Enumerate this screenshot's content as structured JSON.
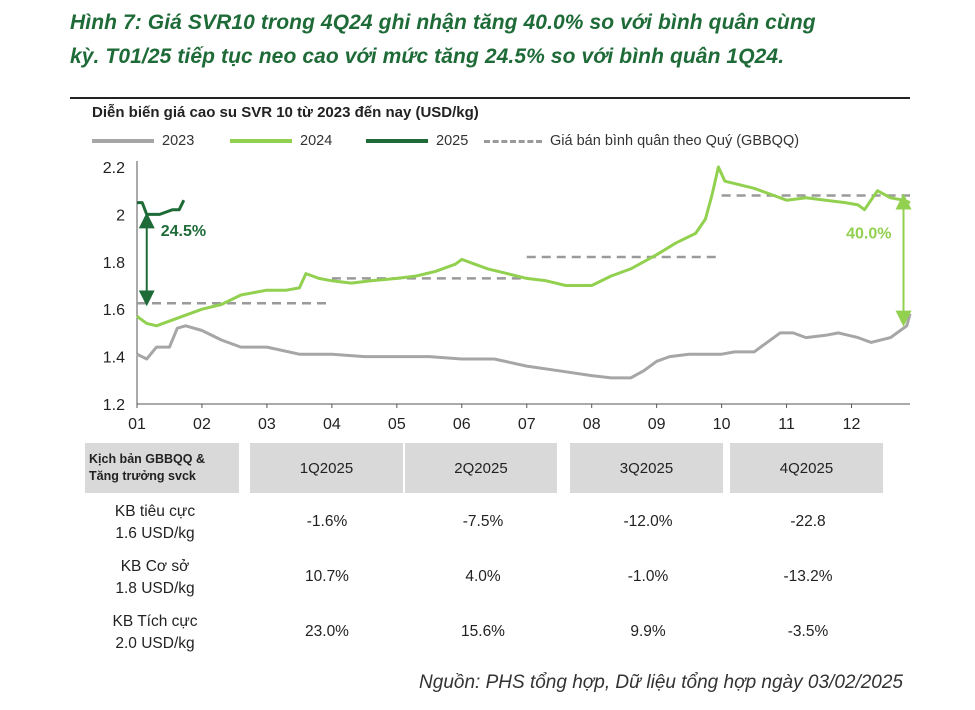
{
  "figure_title_line1": "Hình 7:  Giá SVR10 trong 4Q24 ghi nhận tăng 40.0% so với bình quân cùng",
  "figure_title_line2": "kỳ. T01/25 tiếp tục neo cao với mức tăng 24.5% so với bình quân 1Q24.",
  "source": "Nguồn: PHS tổng hợp, Dữ liệu tổng hợp ngày 03/02/2025",
  "colors": {
    "c2023": "#a6a6a6",
    "c2024": "#92d050",
    "c2025": "#1e6b38",
    "avg": "#9a9a9a",
    "title": "#1e6b38"
  },
  "chart_data": {
    "type": "line",
    "title": "Diễn biến giá cao su SVR 10 từ 2023 đến nay (USD/kg)",
    "xlabel": "",
    "ylabel": "",
    "x_ticks": [
      "01",
      "02",
      "03",
      "04",
      "05",
      "06",
      "07",
      "08",
      "09",
      "10",
      "11",
      "12"
    ],
    "ylim": [
      1.2,
      2.2
    ],
    "y_ticks": [
      "1.2",
      "1.4",
      "1.6",
      "1.8",
      "2",
      "2.2"
    ],
    "x_unit": "month",
    "xlim": [
      1,
      12.9
    ],
    "series": [
      {
        "name": "2023",
        "color": "#a6a6a6",
        "style": "solid",
        "x": [
          1.0,
          1.15,
          1.3,
          1.5,
          1.62,
          1.75,
          2.0,
          2.3,
          2.6,
          3.0,
          3.5,
          4.0,
          4.5,
          5.0,
          5.5,
          6.0,
          6.5,
          7.0,
          7.5,
          8.0,
          8.3,
          8.6,
          8.8,
          9.0,
          9.2,
          9.5,
          9.8,
          10.0,
          10.2,
          10.5,
          10.7,
          10.9,
          11.1,
          11.3,
          11.6,
          11.8,
          12.1,
          12.3,
          12.6,
          12.85,
          12.9
        ],
        "y": [
          1.41,
          1.39,
          1.44,
          1.44,
          1.52,
          1.53,
          1.51,
          1.47,
          1.44,
          1.44,
          1.41,
          1.41,
          1.4,
          1.4,
          1.4,
          1.39,
          1.39,
          1.36,
          1.34,
          1.32,
          1.31,
          1.31,
          1.34,
          1.38,
          1.4,
          1.41,
          1.41,
          1.41,
          1.42,
          1.42,
          1.46,
          1.5,
          1.5,
          1.48,
          1.49,
          1.5,
          1.48,
          1.46,
          1.48,
          1.53,
          1.58
        ]
      },
      {
        "name": "2024",
        "color": "#92d050",
        "style": "solid",
        "x": [
          1.0,
          1.15,
          1.3,
          1.6,
          2.0,
          2.3,
          2.6,
          3.0,
          3.3,
          3.5,
          3.6,
          3.8,
          4.0,
          4.3,
          4.6,
          5.0,
          5.3,
          5.6,
          5.9,
          6.0,
          6.2,
          6.4,
          6.7,
          7.0,
          7.3,
          7.6,
          8.0,
          8.3,
          8.6,
          9.0,
          9.3,
          9.6,
          9.75,
          9.85,
          9.95,
          10.05,
          10.2,
          10.5,
          10.8,
          11.0,
          11.3,
          11.6,
          11.9,
          12.1,
          12.2,
          12.4,
          12.6,
          12.8,
          12.9
        ],
        "y": [
          1.57,
          1.54,
          1.53,
          1.56,
          1.6,
          1.62,
          1.66,
          1.68,
          1.68,
          1.69,
          1.75,
          1.73,
          1.72,
          1.71,
          1.72,
          1.73,
          1.74,
          1.76,
          1.79,
          1.81,
          1.79,
          1.77,
          1.75,
          1.73,
          1.72,
          1.7,
          1.7,
          1.74,
          1.77,
          1.83,
          1.88,
          1.92,
          1.98,
          2.08,
          2.2,
          2.14,
          2.13,
          2.11,
          2.08,
          2.06,
          2.07,
          2.06,
          2.05,
          2.04,
          2.02,
          2.1,
          2.07,
          2.06,
          2.05
        ]
      },
      {
        "name": "2025",
        "color": "#1e6b38",
        "style": "solid",
        "x": [
          1.0,
          1.08,
          1.15,
          1.25,
          1.35,
          1.45,
          1.55,
          1.65,
          1.72
        ],
        "y": [
          2.05,
          2.05,
          2.0,
          2.0,
          2.0,
          2.01,
          2.02,
          2.02,
          2.06
        ]
      },
      {
        "name": "Giá bán bình quân theo Quý (GBBQQ)",
        "color": "#9a9a9a",
        "style": "dashed",
        "segments": [
          {
            "x": [
              1.0,
              4.0
            ],
            "y": 1.625
          },
          {
            "x": [
              4.0,
              7.0
            ],
            "y": 1.73
          },
          {
            "x": [
              7.0,
              10.0
            ],
            "y": 1.82
          },
          {
            "x": [
              10.0,
              12.9
            ],
            "y": 2.08
          }
        ]
      }
    ],
    "annotations": [
      {
        "text": "24.5%",
        "color": "#1e6b38",
        "arrow_x": 1.15,
        "from": 1.625,
        "to": 2.0
      },
      {
        "text": "40.0%",
        "color": "#92d050",
        "arrow_x": 12.8,
        "from": 1.48,
        "to": 2.08
      }
    ]
  },
  "table": {
    "header_first": [
      "Kịch bản GBBQQ &",
      "Tăng trưởng svck"
    ],
    "headers": [
      "1Q2025",
      "2Q2025",
      "3Q2025",
      "4Q2025"
    ],
    "rows": [
      {
        "label": [
          "KB tiêu cực",
          "1.6 USD/kg"
        ],
        "values": [
          "-1.6%",
          "-7.5%",
          "-12.0%",
          "-22.8"
        ]
      },
      {
        "label": [
          "KB Cơ sở",
          "1.8 USD/kg"
        ],
        "values": [
          "10.7%",
          "4.0%",
          "-1.0%",
          "-13.2%"
        ]
      },
      {
        "label": [
          "KB Tích cực",
          "2.0 USD/kg"
        ],
        "values": [
          "23.0%",
          "15.6%",
          "9.9%",
          "-3.5%"
        ]
      }
    ]
  }
}
